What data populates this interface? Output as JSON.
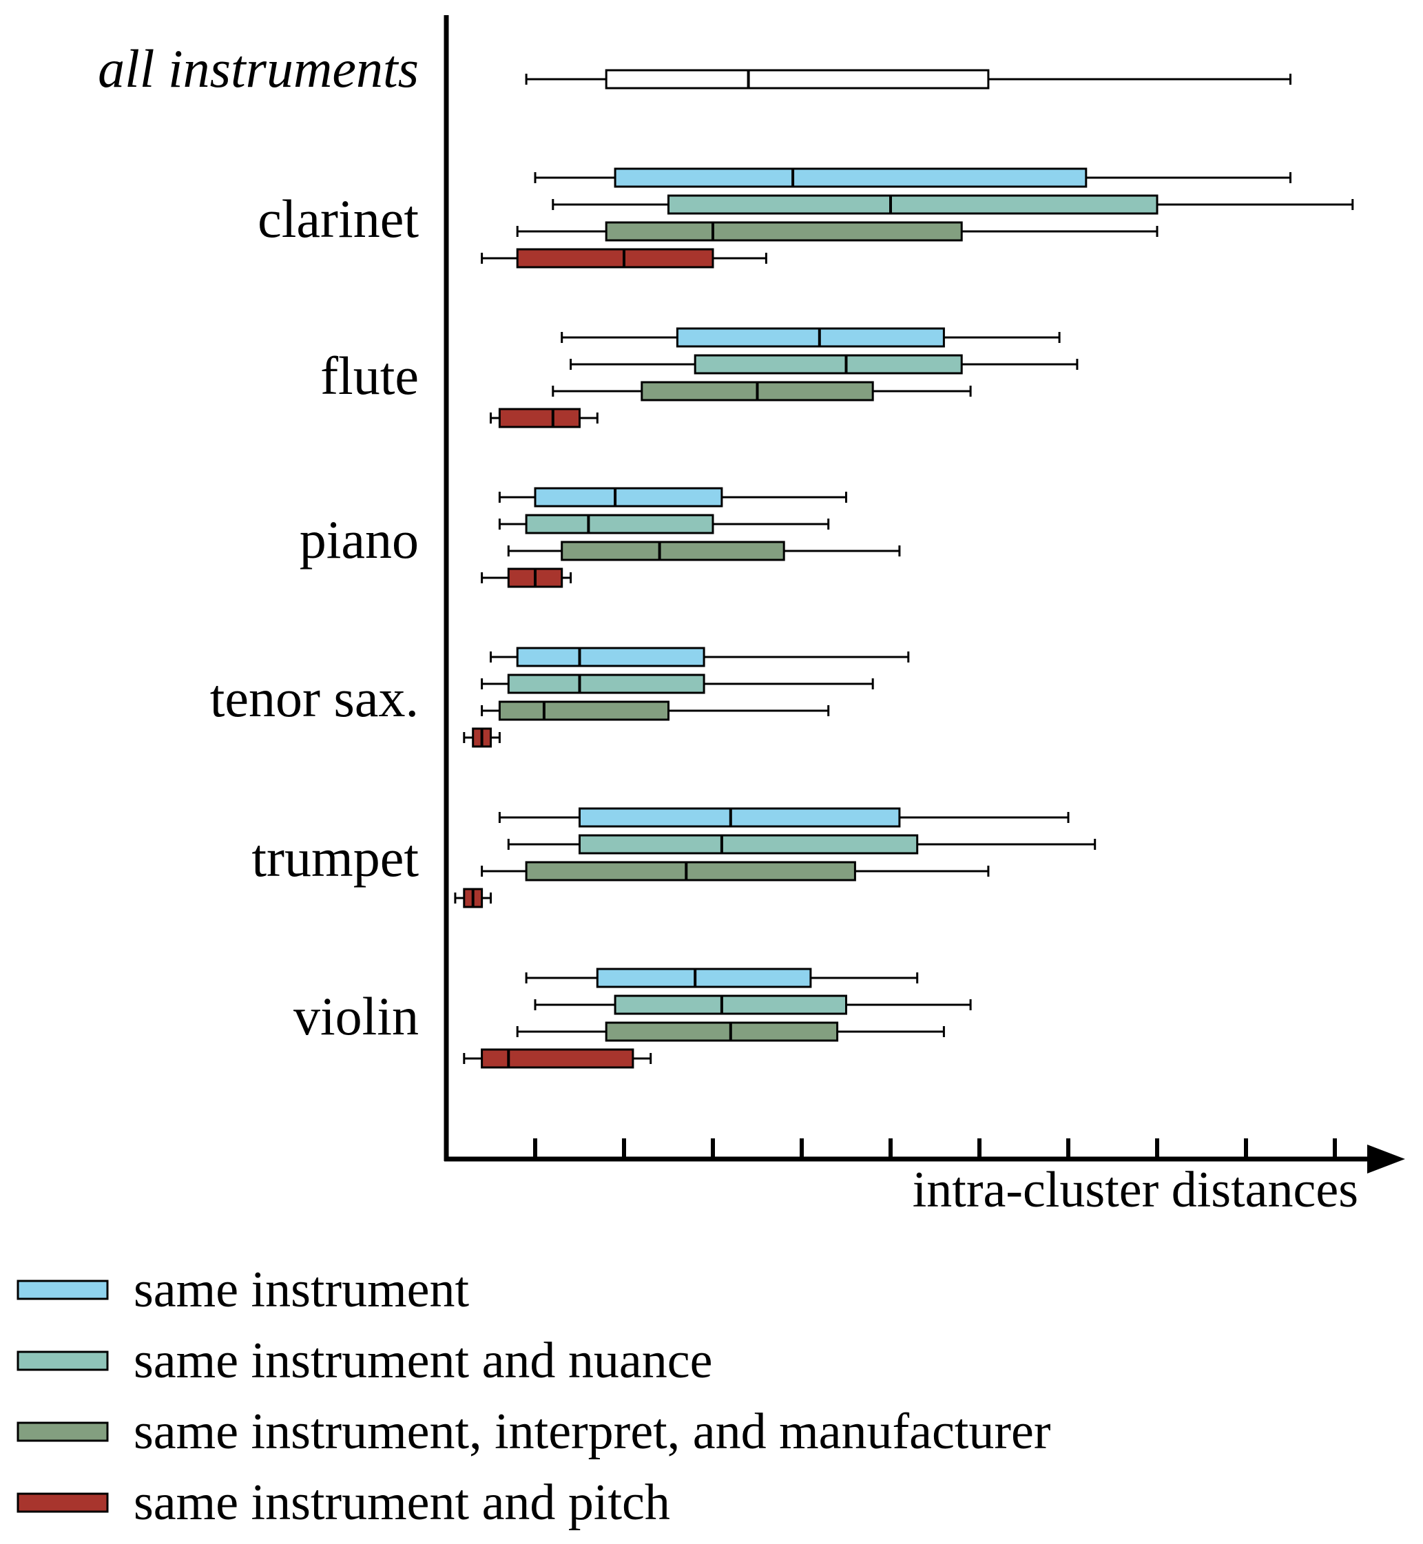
{
  "chart_data": {
    "type": "boxplot",
    "orientation": "horizontal",
    "xlabel": "intra-cluster distances",
    "ylabel": "",
    "xlim": [
      0,
      10.5
    ],
    "x_ticks": [
      1,
      2,
      3,
      4,
      5,
      6,
      7,
      8,
      9,
      10
    ],
    "x_tick_labels_shown": false,
    "legend_position": "bottom",
    "series": [
      {
        "key": "instrument",
        "name": "same instrument",
        "color": "#8fd3ee"
      },
      {
        "key": "nuance",
        "name": "same instrument and nuance",
        "color": "#8fc4b9"
      },
      {
        "key": "interpret",
        "name": "same instrument, interpret, and manufacturer",
        "color": "#839f80"
      },
      {
        "key": "pitch",
        "name": "same instrument and pitch",
        "color": "#a8352d"
      }
    ],
    "groups": [
      {
        "label": "all instruments",
        "italic": true,
        "boxes": [
          {
            "series": "all",
            "color": "#ffffff",
            "min": 0.9,
            "q1": 1.8,
            "median": 3.4,
            "q3": 6.1,
            "max": 9.5
          }
        ]
      },
      {
        "label": "clarinet",
        "boxes": [
          {
            "series": "instrument",
            "min": 1.0,
            "q1": 1.9,
            "median": 3.9,
            "q3": 7.2,
            "max": 9.5
          },
          {
            "series": "nuance",
            "min": 1.2,
            "q1": 2.5,
            "median": 5.0,
            "q3": 8.0,
            "max": 10.2
          },
          {
            "series": "interpret",
            "min": 0.8,
            "q1": 1.8,
            "median": 3.0,
            "q3": 5.8,
            "max": 8.0
          },
          {
            "series": "pitch",
            "min": 0.4,
            "q1": 0.8,
            "median": 2.0,
            "q3": 3.0,
            "max": 3.6
          }
        ]
      },
      {
        "label": "flute",
        "boxes": [
          {
            "series": "instrument",
            "min": 1.3,
            "q1": 2.6,
            "median": 4.2,
            "q3": 5.6,
            "max": 6.9
          },
          {
            "series": "nuance",
            "min": 1.4,
            "q1": 2.8,
            "median": 4.5,
            "q3": 5.8,
            "max": 7.1
          },
          {
            "series": "interpret",
            "min": 1.2,
            "q1": 2.2,
            "median": 3.5,
            "q3": 4.8,
            "max": 5.9
          },
          {
            "series": "pitch",
            "min": 0.5,
            "q1": 0.6,
            "median": 1.2,
            "q3": 1.5,
            "max": 1.7
          }
        ]
      },
      {
        "label": "piano",
        "boxes": [
          {
            "series": "instrument",
            "min": 0.6,
            "q1": 1.0,
            "median": 1.9,
            "q3": 3.1,
            "max": 4.5
          },
          {
            "series": "nuance",
            "min": 0.6,
            "q1": 0.9,
            "median": 1.6,
            "q3": 3.0,
            "max": 4.3
          },
          {
            "series": "interpret",
            "min": 0.7,
            "q1": 1.3,
            "median": 2.4,
            "q3": 3.8,
            "max": 5.1
          },
          {
            "series": "pitch",
            "min": 0.4,
            "q1": 0.7,
            "median": 1.0,
            "q3": 1.3,
            "max": 1.4
          }
        ]
      },
      {
        "label": "tenor sax.",
        "boxes": [
          {
            "series": "instrument",
            "min": 0.5,
            "q1": 0.8,
            "median": 1.5,
            "q3": 2.9,
            "max": 5.2
          },
          {
            "series": "nuance",
            "min": 0.4,
            "q1": 0.7,
            "median": 1.5,
            "q3": 2.9,
            "max": 4.8
          },
          {
            "series": "interpret",
            "min": 0.4,
            "q1": 0.6,
            "median": 1.1,
            "q3": 2.5,
            "max": 4.3
          },
          {
            "series": "pitch",
            "min": 0.2,
            "q1": 0.3,
            "median": 0.4,
            "q3": 0.5,
            "max": 0.6
          }
        ]
      },
      {
        "label": "trumpet",
        "boxes": [
          {
            "series": "instrument",
            "min": 0.6,
            "q1": 1.5,
            "median": 3.2,
            "q3": 5.1,
            "max": 7.0
          },
          {
            "series": "nuance",
            "min": 0.7,
            "q1": 1.5,
            "median": 3.1,
            "q3": 5.3,
            "max": 7.3
          },
          {
            "series": "interpret",
            "min": 0.4,
            "q1": 0.9,
            "median": 2.7,
            "q3": 4.6,
            "max": 6.1
          },
          {
            "series": "pitch",
            "min": 0.1,
            "q1": 0.2,
            "median": 0.3,
            "q3": 0.4,
            "max": 0.5
          }
        ]
      },
      {
        "label": "violin",
        "boxes": [
          {
            "series": "instrument",
            "min": 0.9,
            "q1": 1.7,
            "median": 2.8,
            "q3": 4.1,
            "max": 5.3
          },
          {
            "series": "nuance",
            "min": 1.0,
            "q1": 1.9,
            "median": 3.1,
            "q3": 4.5,
            "max": 5.9
          },
          {
            "series": "interpret",
            "min": 0.8,
            "q1": 1.8,
            "median": 3.2,
            "q3": 4.4,
            "max": 5.6
          },
          {
            "series": "pitch",
            "min": 0.2,
            "q1": 0.4,
            "median": 0.7,
            "q3": 2.1,
            "max": 2.3
          }
        ]
      }
    ]
  }
}
